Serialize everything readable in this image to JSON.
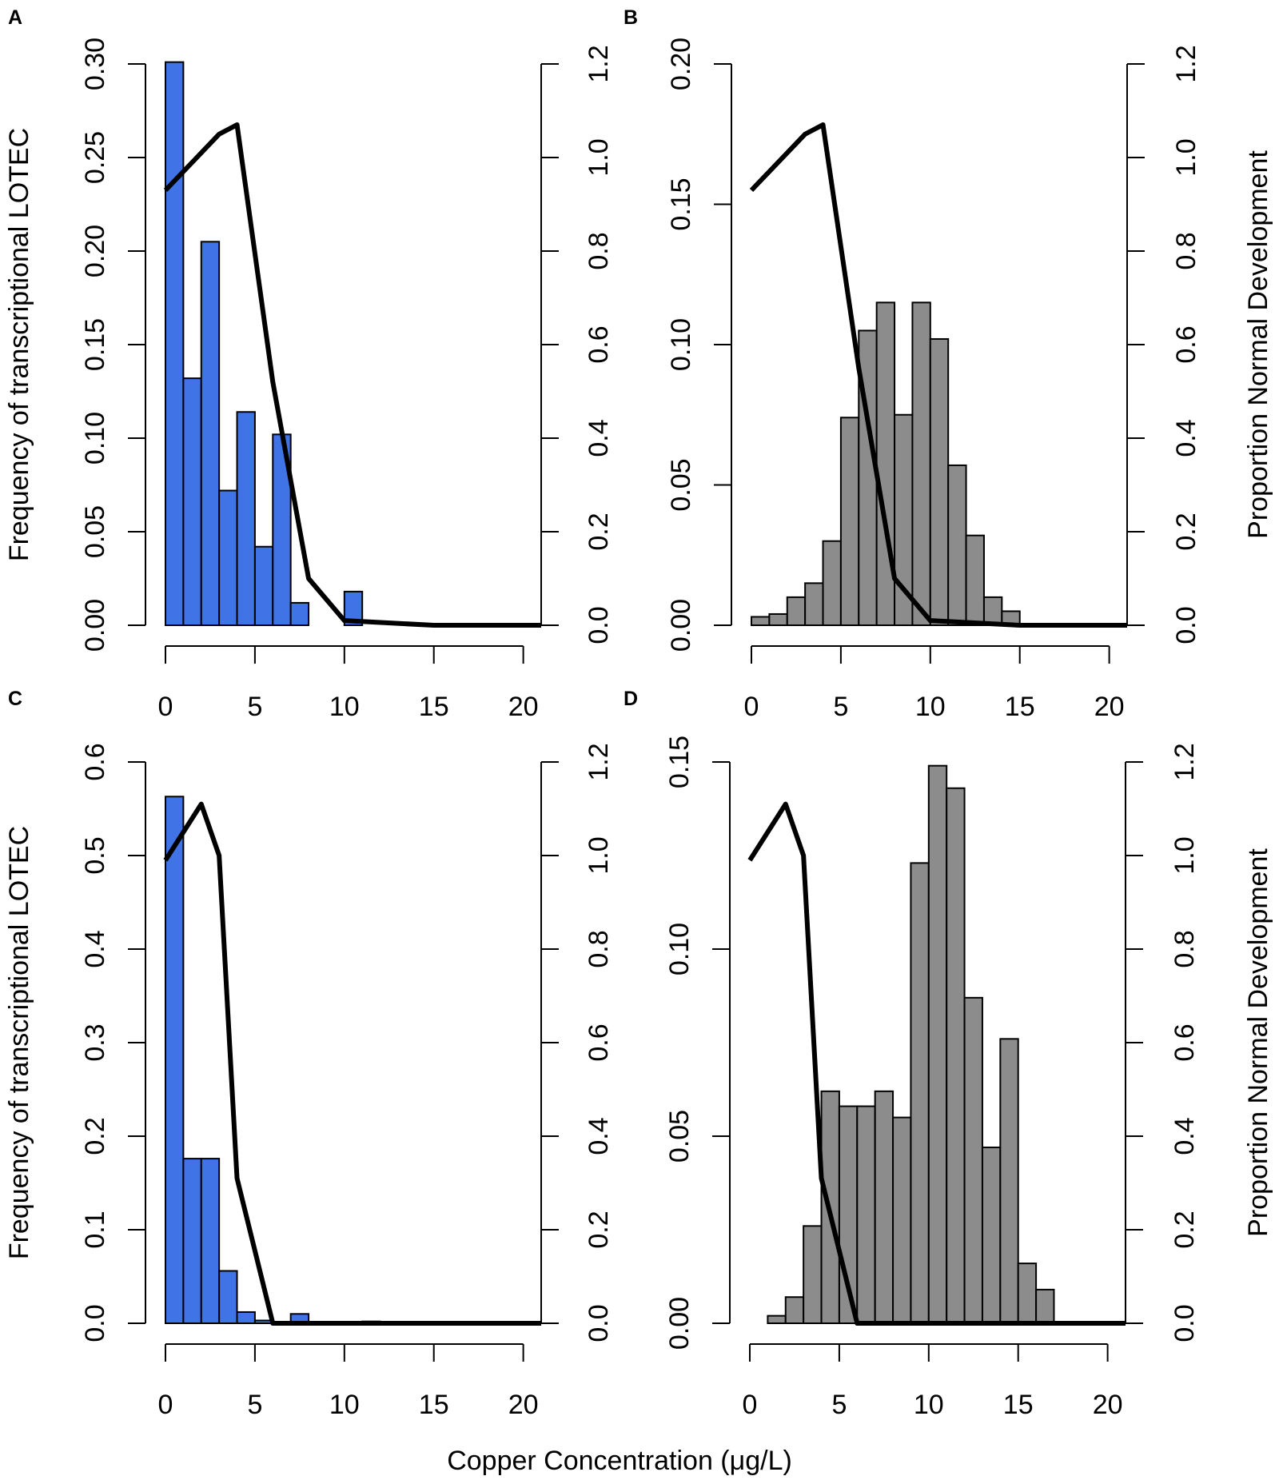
{
  "figure": {
    "xlabel": "Copper Concentration (μg/L)",
    "ylabel_left": "Frequency of transcriptional LOTEC",
    "ylabel_right": "Proportion Normal Development",
    "colors": {
      "blue": "#3f73e6",
      "gray": "#8c8c8c",
      "line": "#000000",
      "bar_edge": "#000000"
    }
  },
  "chart_data": [
    {
      "panel": "A",
      "type": "bar",
      "color_key": "blue",
      "bin_width": 1,
      "bins_start": 0,
      "values": [
        0.301,
        0.132,
        0.205,
        0.072,
        0.114,
        0.042,
        0.102,
        0.012,
        0,
        0,
        0.018
      ],
      "xlim": [
        0,
        21
      ],
      "ylim": [
        0,
        0.3
      ],
      "x_ticks": [
        "0",
        "5",
        "10",
        "15",
        "20"
      ],
      "y_ticks": [
        "0.00",
        "0.05",
        "0.10",
        "0.15",
        "0.20",
        "0.25",
        "0.30"
      ],
      "y2_ticks": [
        "0.0",
        "0.2",
        "0.4",
        "0.6",
        "0.8",
        "1.0",
        "1.2"
      ],
      "line": {
        "x": [
          0,
          1,
          2,
          3,
          4,
          6,
          8,
          10,
          15,
          21
        ],
        "y": [
          0.93,
          0.97,
          1.01,
          1.05,
          1.07,
          0.52,
          0.1,
          0.01,
          0.0,
          0.0
        ]
      },
      "ylabel": "Frequency of transcriptional LOTEC"
    },
    {
      "panel": "B",
      "type": "bar",
      "color_key": "gray",
      "bin_width": 1,
      "bins_start": 0,
      "values": [
        0.003,
        0.004,
        0.01,
        0.015,
        0.03,
        0.074,
        0.105,
        0.115,
        0.075,
        0.115,
        0.102,
        0.057,
        0.032,
        0.01,
        0.005
      ],
      "xlim": [
        0,
        21
      ],
      "ylim": [
        0,
        0.2
      ],
      "x_ticks": [
        "0",
        "5",
        "10",
        "15",
        "20"
      ],
      "y_ticks": [
        "0.00",
        "0.05",
        "0.10",
        "0.15",
        "0.20"
      ],
      "y2_ticks": [
        "0.0",
        "0.2",
        "0.4",
        "0.6",
        "0.8",
        "1.0",
        "1.2"
      ],
      "line": {
        "x": [
          0,
          1,
          2,
          3,
          4,
          6,
          8,
          10,
          15,
          21
        ],
        "y": [
          0.93,
          0.97,
          1.01,
          1.05,
          1.07,
          0.55,
          0.1,
          0.01,
          0.0,
          0.0
        ]
      },
      "y2label": "Proportion Normal Development"
    },
    {
      "panel": "C",
      "type": "bar",
      "color_key": "blue",
      "bin_width": 1,
      "bins_start": 0,
      "values": [
        0.563,
        0.176,
        0.176,
        0.056,
        0.012,
        0.003,
        0,
        0.01,
        0,
        0,
        0,
        0.002
      ],
      "xlim": [
        0,
        21
      ],
      "ylim": [
        0,
        0.6
      ],
      "x_ticks": [
        "0",
        "5",
        "10",
        "15",
        "20"
      ],
      "y_ticks": [
        "0.0",
        "0.1",
        "0.2",
        "0.3",
        "0.4",
        "0.5",
        "0.6"
      ],
      "y2_ticks": [
        "0.0",
        "0.2",
        "0.4",
        "0.6",
        "0.8",
        "1.0",
        "1.2"
      ],
      "line": {
        "x": [
          0,
          1,
          2,
          3,
          4,
          6,
          8,
          10,
          15,
          21
        ],
        "y": [
          0.99,
          1.05,
          1.11,
          1.0,
          0.31,
          0.0,
          0.0,
          0.0,
          0.0,
          0.0
        ]
      },
      "ylabel": "Frequency of transcriptional LOTEC"
    },
    {
      "panel": "D",
      "type": "bar",
      "color_key": "gray",
      "bin_width": 1,
      "bins_start": 0,
      "values": [
        0,
        0.002,
        0.007,
        0.026,
        0.062,
        0.058,
        0.058,
        0.062,
        0.055,
        0.123,
        0.149,
        0.143,
        0.087,
        0.047,
        0.076,
        0.016,
        0.009
      ],
      "xlim": [
        0,
        21
      ],
      "ylim": [
        0,
        0.15
      ],
      "x_ticks": [
        "0",
        "5",
        "10",
        "15",
        "20"
      ],
      "y_ticks": [
        "0.00",
        "0.05",
        "0.10",
        "0.15"
      ],
      "y2_ticks": [
        "0.0",
        "0.2",
        "0.4",
        "0.6",
        "0.8",
        "1.0",
        "1.2"
      ],
      "line": {
        "x": [
          0,
          1,
          2,
          3,
          4,
          6,
          8,
          10,
          15,
          21
        ],
        "y": [
          0.99,
          1.05,
          1.11,
          1.0,
          0.31,
          0.0,
          0.0,
          0.0,
          0.0,
          0.0
        ]
      },
      "y2label": "Proportion Normal Development"
    }
  ]
}
